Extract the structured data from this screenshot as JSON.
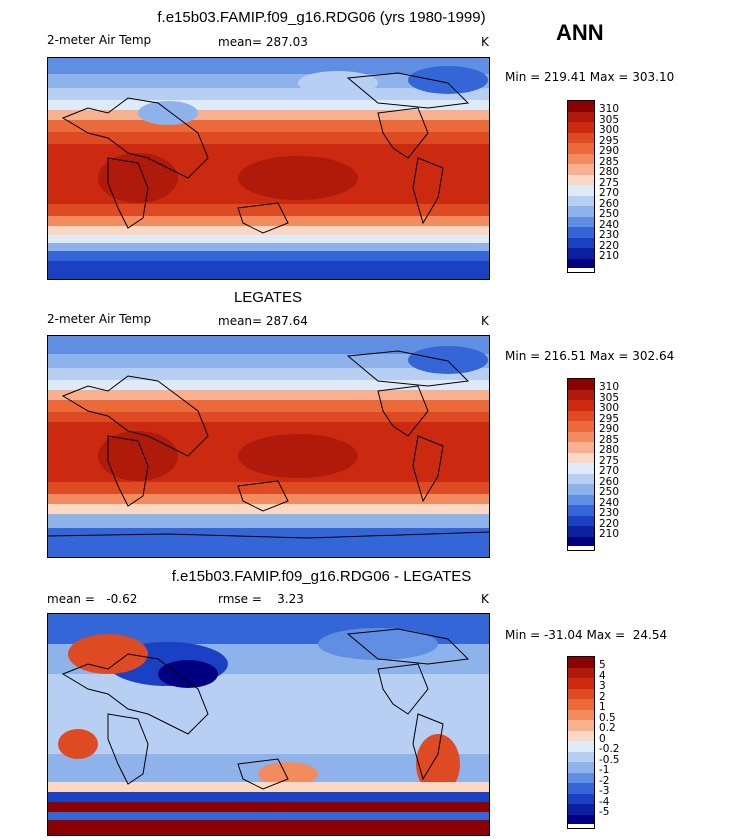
{
  "season": "ANN",
  "panels": [
    {
      "title": "f.e15b03.FAMIP.f09_g16.RDG06 (yrs 1980-1999)",
      "left_label": "2-meter Air Temp",
      "center_label": "mean= 287.03",
      "right_label": "K",
      "minmax": "Min = 219.41 Max = 303.10",
      "colorbar_labels": [
        "310",
        "305",
        "300",
        "295",
        "290",
        "285",
        "280",
        "275",
        "270",
        "260",
        "250",
        "240",
        "230",
        "220",
        "210"
      ]
    },
    {
      "title": "LEGATES",
      "left_label": "2-meter Air Temp",
      "center_label": "mean= 287.64",
      "right_label": "K",
      "minmax": "Min = 216.51 Max = 302.64",
      "colorbar_labels": [
        "310",
        "305",
        "300",
        "295",
        "290",
        "285",
        "280",
        "275",
        "270",
        "260",
        "250",
        "240",
        "230",
        "220",
        "210"
      ]
    },
    {
      "title": "f.e15b03.FAMIP.f09_g16.RDG06 - LEGATES",
      "left_label": "mean =   -0.62",
      "center_label": "rmse =    3.23",
      "right_label": "K",
      "minmax": "Min = -31.04 Max =  24.54",
      "colorbar_labels": [
        "5",
        "4",
        "3",
        "2",
        "1",
        "0.5",
        "0.2",
        "0",
        "-0.2",
        "-0.5",
        "-1",
        "-2",
        "-3",
        "-4",
        "-5"
      ]
    }
  ],
  "colors": {
    "palette": [
      "#8b0000",
      "#b01a0a",
      "#cc2a10",
      "#de4a22",
      "#ec6a3a",
      "#f28c5e",
      "#f7b090",
      "#fbd8c4",
      "#dfeaf8",
      "#b7cff2",
      "#8eb2ea",
      "#5f8ee2",
      "#3566d8",
      "#1a40c4",
      "#0a20a0",
      "#000080"
    ]
  }
}
